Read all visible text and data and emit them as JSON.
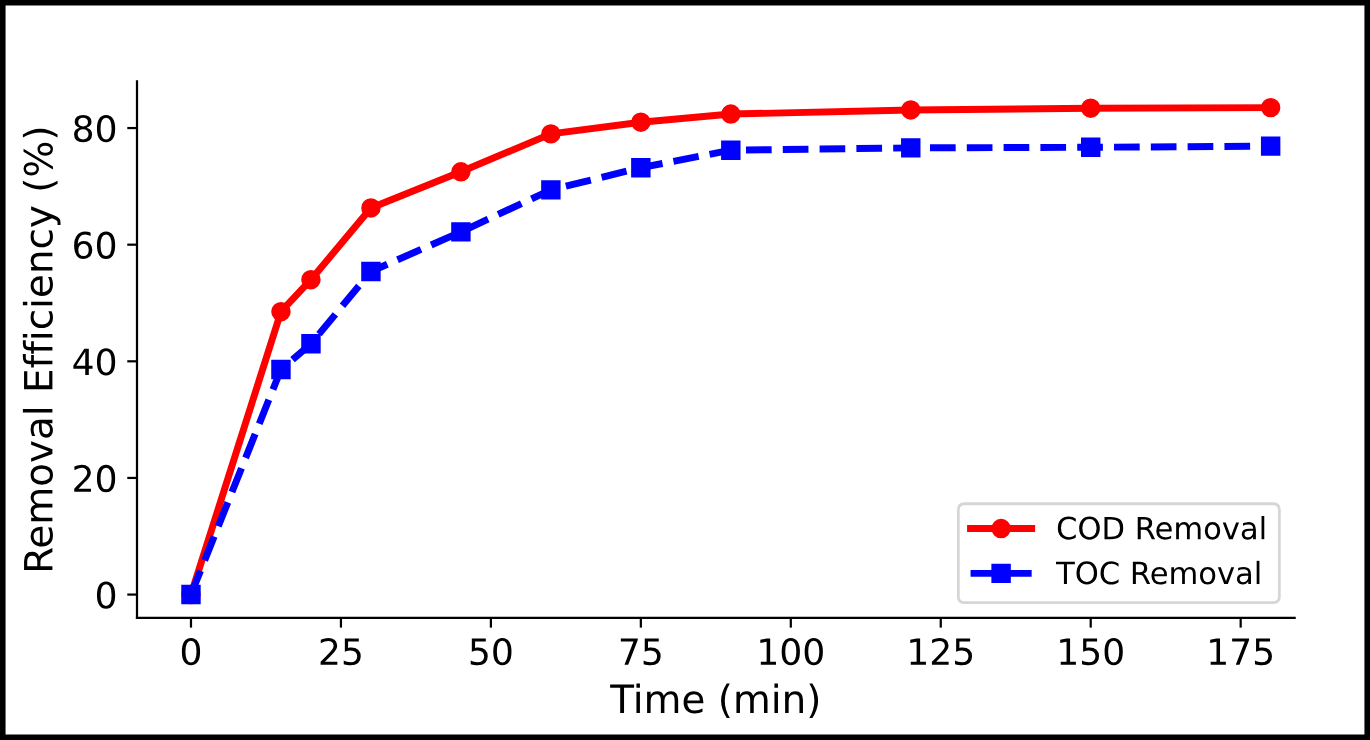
{
  "chart_data": {
    "type": "line",
    "xlabel": "Time (min)",
    "ylabel": "Removal Efficiency (%)",
    "x": [
      0,
      15,
      20,
      30,
      45,
      60,
      75,
      90,
      120,
      150,
      180
    ],
    "series": [
      {
        "name": "COD Removal",
        "color": "#ff0000",
        "marker": "circle",
        "line_style": "solid",
        "values": [
          0,
          48.5,
          54,
          66.3,
          72.5,
          79,
          81,
          82.4,
          83.1,
          83.4,
          83.5
        ]
      },
      {
        "name": "TOC Removal",
        "color": "#0000ff",
        "marker": "square",
        "line_style": "dashed",
        "values": [
          0,
          38.6,
          43,
          55.4,
          62.2,
          69.4,
          73.2,
          76.2,
          76.6,
          76.7,
          76.9
        ]
      }
    ],
    "xlim": [
      -9,
      184
    ],
    "ylim": [
      -4,
      88
    ],
    "xticks": [
      0,
      25,
      50,
      75,
      100,
      125,
      150,
      175
    ],
    "yticks": [
      0,
      20,
      40,
      60,
      80
    ],
    "grid": false,
    "legend": "bottom right"
  }
}
